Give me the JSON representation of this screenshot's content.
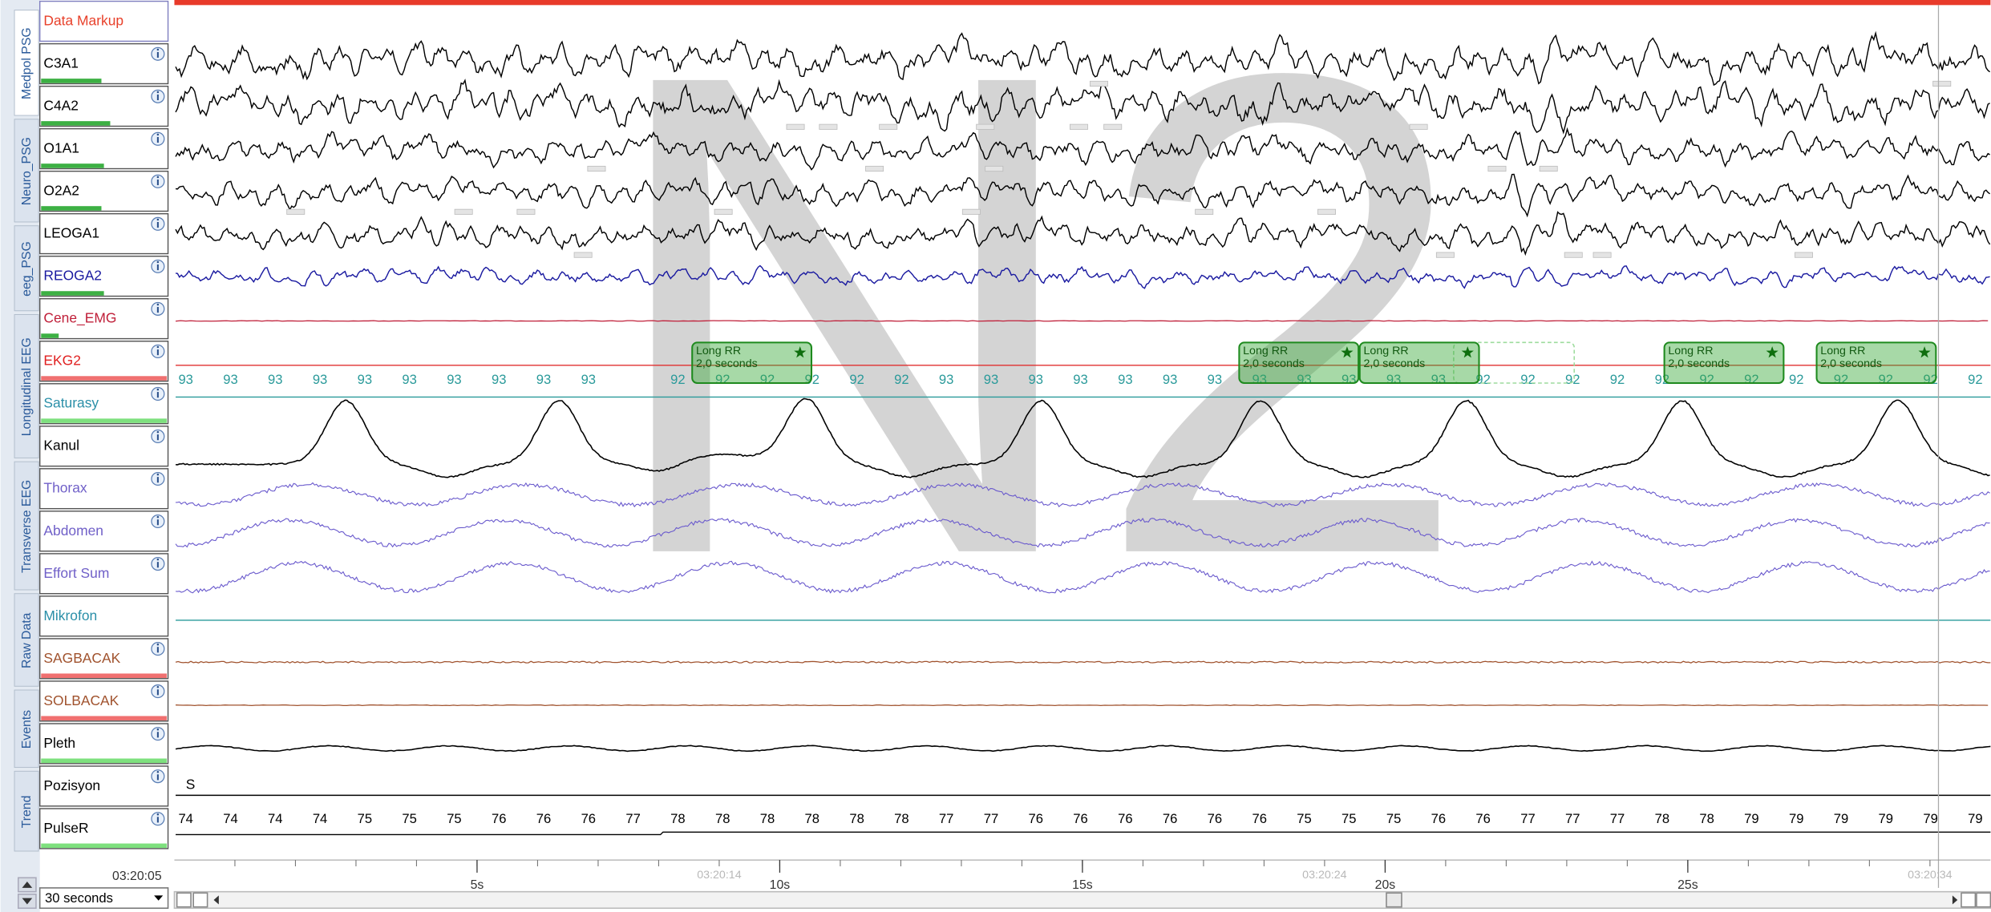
{
  "tabs": [
    "Medpol PSG",
    "Neuro_PSG",
    "eeg_PSG",
    "Longitudinal EEG",
    "Transverse EEG",
    "Raw Data",
    "Events",
    "Trend"
  ],
  "channels": [
    {
      "label": "Data Markup",
      "color": "#e8402a"
    },
    {
      "label": "C3A1",
      "color": "#000000"
    },
    {
      "label": "C4A2",
      "color": "#000000"
    },
    {
      "label": "O1A1",
      "color": "#000000"
    },
    {
      "label": "O2A2",
      "color": "#000000"
    },
    {
      "label": "LEOGA1",
      "color": "#000000"
    },
    {
      "label": "REOGA2",
      "color": "#1a1aa0"
    },
    {
      "label": "Cene_EMG",
      "color": "#c0203a"
    },
    {
      "label": "EKG2",
      "color": "#e02020"
    },
    {
      "label": "Saturasy",
      "color": "#2a8fa8"
    },
    {
      "label": "Kanul",
      "color": "#000000"
    },
    {
      "label": "Thorax",
      "color": "#7060c8"
    },
    {
      "label": "Abdomen",
      "color": "#7060c8"
    },
    {
      "label": "Effort Sum",
      "color": "#7060c8"
    },
    {
      "label": "Mikrofon",
      "color": "#2a8fa8"
    },
    {
      "label": "SAGBACAK",
      "color": "#a0522d"
    },
    {
      "label": "SOLBACAK",
      "color": "#a0522d"
    },
    {
      "label": "Pleth",
      "color": "#000000"
    },
    {
      "label": "Pozisyon",
      "color": "#000000"
    },
    {
      "label": "PulseR",
      "color": "#000000"
    }
  ],
  "stage": "N2",
  "saturation_values": [
    93,
    93,
    93,
    93,
    93,
    93,
    93,
    93,
    93,
    93,
    null,
    92,
    92,
    92,
    92,
    92,
    92,
    93,
    93,
    93,
    93,
    93,
    93,
    93,
    93,
    93,
    93,
    93,
    93,
    92,
    92,
    92,
    92,
    92,
    92,
    92,
    92,
    92,
    92,
    92,
    92
  ],
  "pulse_values": [
    74,
    74,
    74,
    74,
    75,
    75,
    75,
    76,
    76,
    76,
    77,
    78,
    78,
    78,
    78,
    78,
    78,
    77,
    77,
    76,
    76,
    76,
    76,
    76,
    76,
    75,
    75,
    75,
    76,
    76,
    77,
    77,
    77,
    78,
    78,
    79,
    79,
    79,
    79,
    79,
    79
  ],
  "position_marker": "S",
  "events": [
    {
      "label": "Long RR",
      "detail": "2,0 seconds"
    },
    {
      "label": "Long RR",
      "detail": "2,0 seconds"
    },
    {
      "label": "Long RR",
      "detail": "2,0 seconds"
    },
    {
      "label": "Long RR",
      "detail": "2,0 seconds"
    },
    {
      "label": "Long RR",
      "detail": "2,0 seconds"
    }
  ],
  "time_axis": {
    "xlim": [
      0,
      30
    ],
    "ticks": [
      {
        "value": 5,
        "label": "5s"
      },
      {
        "value": 10,
        "label": "10s"
      },
      {
        "value": 15,
        "label": "15s"
      },
      {
        "value": 20,
        "label": "20s"
      },
      {
        "value": 25,
        "label": "25s"
      }
    ],
    "clock_ticks": [
      {
        "value": 9,
        "label": "03:20:14"
      },
      {
        "value": 19,
        "label": "03:20:24"
      },
      {
        "value": 29,
        "label": "03:20:34"
      }
    ]
  },
  "start_time": "03:20:05",
  "window": "30 seconds"
}
